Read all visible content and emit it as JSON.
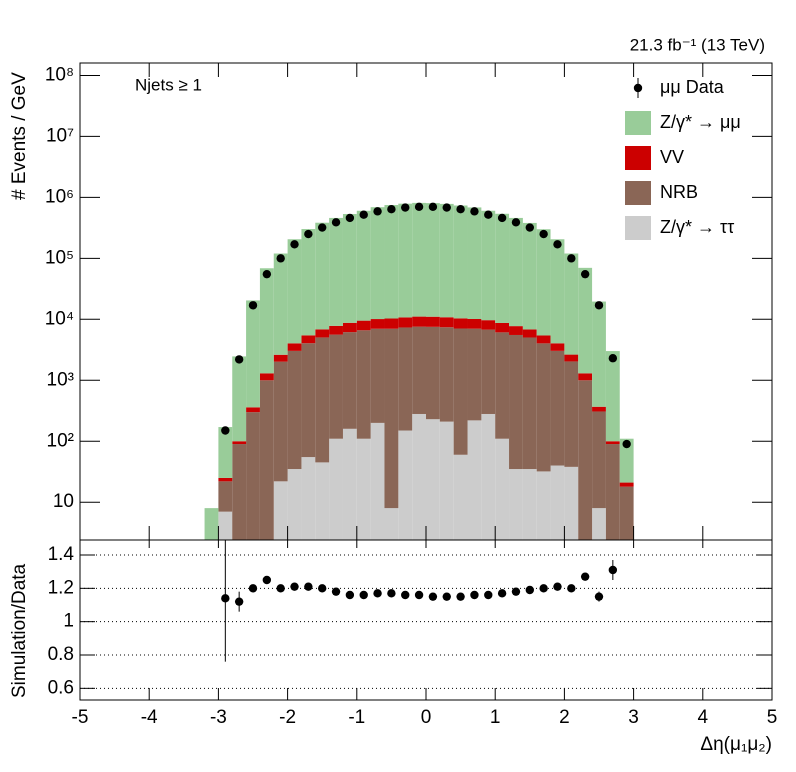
{
  "chart_data": [
    {
      "type": "histogram",
      "stacked": true,
      "log_y": true,
      "annotations": [
        "21.3 fb⁻¹ (13 TeV)",
        "Njets ≥ 1"
      ],
      "ylabel": "# Events / GeV",
      "bins": [
        -3.2,
        -3.0,
        -2.8,
        -2.6,
        -2.4,
        -2.2,
        -2.0,
        -1.8,
        -1.6,
        -1.4,
        -1.2,
        -1.0,
        -0.8,
        -0.6,
        -0.4,
        -0.2,
        0.0,
        0.2,
        0.4,
        0.6,
        0.8,
        1.0,
        1.2,
        1.4,
        1.6,
        1.8,
        2.0,
        2.2,
        2.4,
        2.6,
        2.8,
        3.0
      ],
      "series": [
        {
          "name": "Z/γ* → ττ",
          "color": "#cccccc",
          "values": [
            0,
            7,
            0,
            0,
            0,
            22,
            35,
            55,
            45,
            110,
            160,
            110,
            200,
            8,
            150,
            280,
            230,
            210,
            60,
            220,
            280,
            110,
            35,
            35,
            32,
            40,
            38,
            0,
            8,
            0,
            0
          ]
        },
        {
          "name": "NRB",
          "color": "#8a6656",
          "values": [
            0,
            15,
            90,
            300,
            1000,
            2000,
            3000,
            4000,
            5000,
            5500,
            6000,
            6500,
            6800,
            7000,
            7200,
            7300,
            7300,
            7200,
            7000,
            6800,
            6500,
            6000,
            5500,
            5000,
            4000,
            3000,
            2000,
            1000,
            300,
            90,
            18
          ]
        },
        {
          "name": "VV",
          "color": "#cc0000",
          "values": [
            0,
            3,
            10,
            60,
            300,
            600,
            1000,
            1400,
            1800,
            2200,
            2600,
            2900,
            3100,
            3300,
            3400,
            3500,
            3500,
            3400,
            3300,
            3100,
            2900,
            2600,
            2200,
            1800,
            1400,
            1000,
            600,
            300,
            60,
            10,
            3
          ]
        },
        {
          "name": "Z/γ* → μμ",
          "color": "#99cc99",
          "values": [
            8,
            146,
            2364,
            20040,
            67450,
            117400,
            201700,
            297000,
            377200,
            452400,
            524800,
            593700,
            680200,
            738500,
            778000,
            800900,
            794000,
            771200,
            725600,
            674300,
            593500,
            529500,
            452500,
            374000,
            294600,
            201700,
            117400,
            68550,
            19180,
            2913,
            89
          ]
        }
      ],
      "data": {
        "name": "μμ Data",
        "color": "#000000",
        "values": [
          null,
          150,
          2200,
          17000,
          55000,
          100000,
          170000,
          250000,
          320000,
          390000,
          460000,
          520000,
          590000,
          640000,
          680000,
          700000,
          700000,
          680000,
          640000,
          590000,
          520000,
          460000,
          390000,
          320000,
          250000,
          170000,
          100000,
          55000,
          17000,
          2300,
          90
        ]
      },
      "xlim": [
        -5,
        5
      ],
      "ylim": [
        2.4,
        160000000
      ],
      "yticks": [
        10,
        {
          "value": 100,
          "label": "10²"
        },
        {
          "value": 1000,
          "label": "10³"
        },
        {
          "value": 10000,
          "label": "10⁴"
        },
        {
          "value": 100000,
          "label": "10⁵"
        },
        {
          "value": 1000000,
          "label": "10⁶"
        },
        {
          "value": 10000000,
          "label": "10⁷"
        },
        {
          "value": 100000000,
          "label": "10⁸"
        }
      ],
      "legend": "top right"
    },
    {
      "type": "scatter",
      "xlabel": "Δη(μ₁μ₂)",
      "ylabel": "Simulation/Data",
      "x": [
        -2.9,
        -2.7,
        -2.5,
        -2.3,
        -2.1,
        -1.9,
        -1.7,
        -1.5,
        -1.3,
        -1.1,
        -0.9,
        -0.7,
        -0.5,
        -0.3,
        -0.1,
        0.1,
        0.3,
        0.5,
        0.7,
        0.9,
        1.1,
        1.3,
        1.5,
        1.7,
        1.9,
        2.1,
        2.3,
        2.5,
        2.7
      ],
      "values": [
        1.14,
        1.12,
        1.2,
        1.25,
        1.2,
        1.21,
        1.21,
        1.2,
        1.18,
        1.16,
        1.16,
        1.17,
        1.17,
        1.16,
        1.16,
        1.15,
        1.15,
        1.15,
        1.16,
        1.16,
        1.17,
        1.18,
        1.19,
        1.2,
        1.21,
        1.2,
        1.27,
        1.15,
        1.31
      ],
      "errors": [
        0.38,
        0.06,
        0.02,
        0.015,
        0.01,
        0.01,
        0.01,
        0.01,
        0.01,
        0.01,
        0.01,
        0.01,
        0.01,
        0.01,
        0.01,
        0.01,
        0.01,
        0.01,
        0.01,
        0.01,
        0.01,
        0.01,
        0.01,
        0.01,
        0.01,
        0.01,
        0.02,
        0.03,
        0.06
      ],
      "color": "#000000",
      "xlim": [
        -5,
        5
      ],
      "xticks": [
        -5,
        -4,
        -3,
        -2,
        -1,
        0,
        1,
        2,
        3,
        4,
        5
      ],
      "ylim": [
        0.53,
        1.49
      ],
      "yticks": [
        0.6,
        0.8,
        1,
        1.2,
        1.4
      ],
      "grid": true
    }
  ]
}
